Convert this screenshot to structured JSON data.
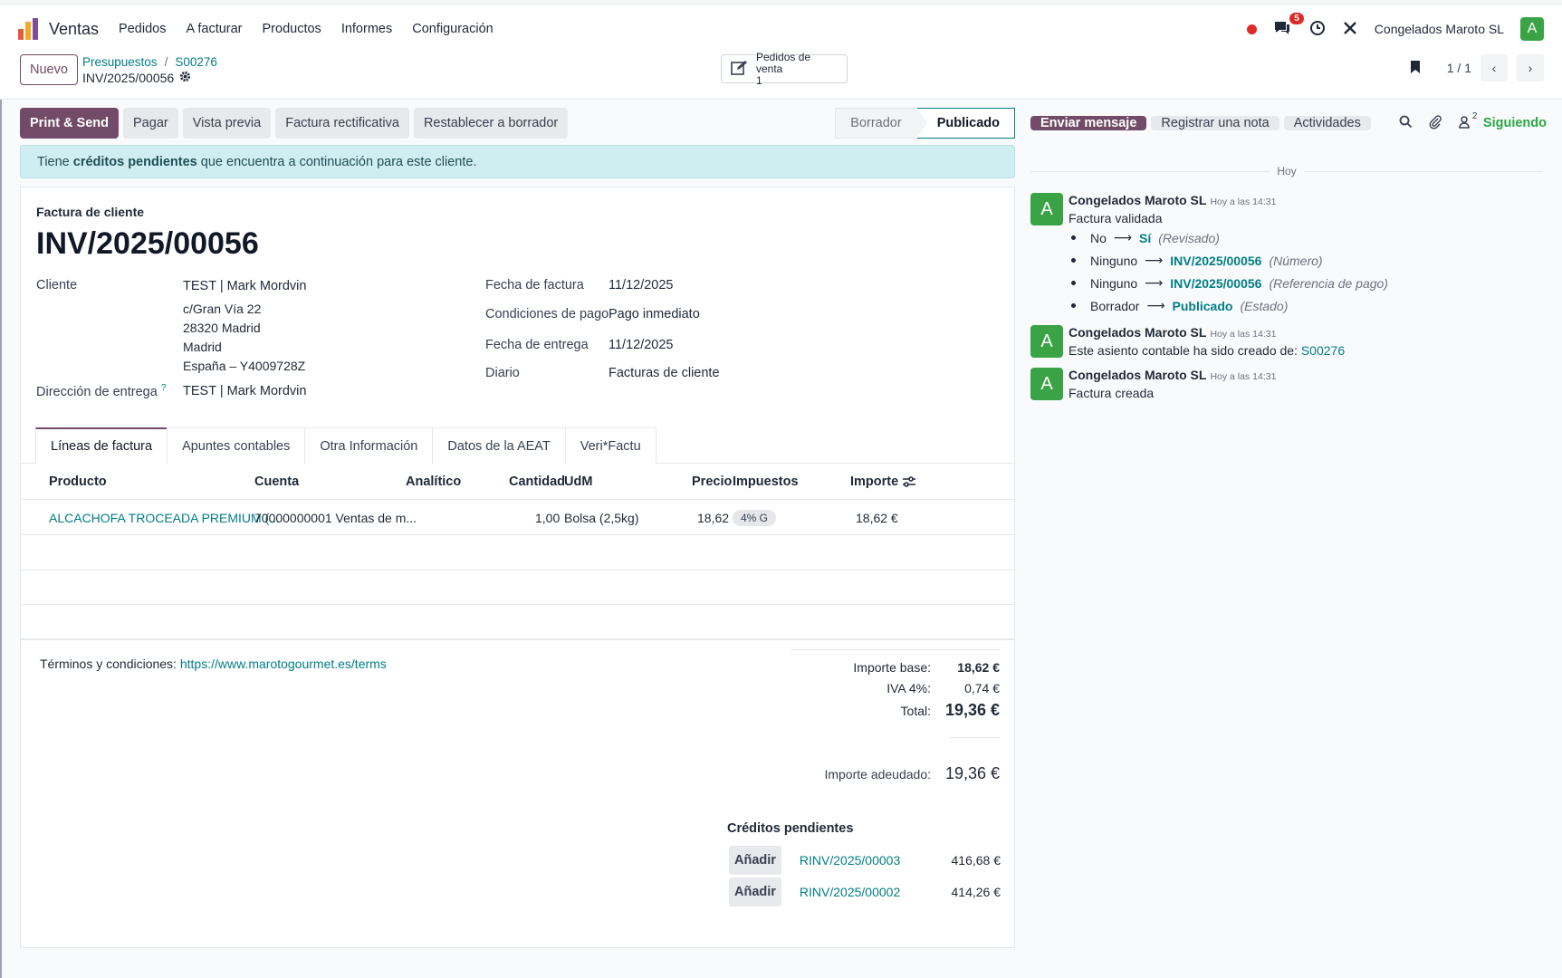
{
  "app": {
    "name": "Ventas",
    "menu": [
      "Pedidos",
      "A facturar",
      "Productos",
      "Informes",
      "Configuración"
    ],
    "messages_count": "5",
    "company": "Congelados Maroto SL",
    "avatar_letter": "A",
    "colors": {
      "brand": "#714b67",
      "link": "#017e84",
      "success": "#28a745",
      "avatar": "#3aa345"
    }
  },
  "control": {
    "new_label": "Nuevo",
    "breadcrumb": [
      "Presupuestos",
      "S00276"
    ],
    "current": "INV/2025/00056",
    "smart_button": {
      "label": "Pedidos de venta",
      "count": "1"
    },
    "pager": "1 / 1"
  },
  "actions": [
    "Print & Send",
    "Pagar",
    "Vista previa",
    "Factura rectificativa",
    "Restablecer a borrador"
  ],
  "status_steps": [
    {
      "label": "Borrador",
      "active": false
    },
    {
      "label": "Publicado",
      "active": true
    }
  ],
  "alert": {
    "prefix": "Tiene ",
    "bold": "créditos pendientes",
    "suffix": " que encuentra a continuación para este cliente."
  },
  "invoice": {
    "type": "Factura de cliente",
    "number": "INV/2025/00056",
    "customer_label": "Cliente",
    "customer": "TEST | Mark Mordvin",
    "address": [
      "c/Gran Vía 22",
      "28320 Madrid",
      "Madrid",
      "España – Y4009728Z"
    ],
    "delivery_label": "Dirección de entrega",
    "delivery_help": "?",
    "delivery": "TEST | Mark Mordvin",
    "date_label": "Fecha de factura",
    "date": "11/12/2025",
    "terms_label": "Condiciones de pago",
    "terms": "Pago inmediato",
    "delivery_date_label": "Fecha de entrega",
    "delivery_date": "11/12/2025",
    "journal_label": "Diario",
    "journal": "Facturas de cliente"
  },
  "tabs": [
    "Líneas de factura",
    "Apuntes contables",
    "Otra Información",
    "Datos de la AEAT",
    "Veri*Factu"
  ],
  "lines": {
    "headers": [
      "Producto",
      "Cuenta",
      "Analítico",
      "Cantidad",
      "UdM",
      "Precio",
      "Impuestos",
      "Importe"
    ],
    "rows": [
      {
        "product": "ALCACHOFA TROCEADA PREMIUM (...",
        "account": "70000000001 Ventas de m...",
        "analytic": "",
        "qty": "1,00",
        "uom": "Bolsa (2,5kg)",
        "price": "18,62",
        "tax": "4% G",
        "amount": "18,62 €"
      }
    ]
  },
  "terms_text": {
    "label": "Términos y condiciones: ",
    "url": "https://www.marotogourmet.es/terms"
  },
  "totals": {
    "base_label": "Importe base:",
    "base": "18,62 €",
    "tax_label": "IVA 4%:",
    "tax": "0,74 €",
    "total_label": "Total:",
    "total": "19,36 €",
    "due_label": "Importe adeudado:",
    "due": "19,36 €"
  },
  "credits": {
    "title": "Créditos pendientes",
    "items": [
      {
        "button": "Añadir",
        "ref": "RINV/2025/00003",
        "amount": "416,68 €"
      },
      {
        "button": "Añadir",
        "ref": "RINV/2025/00002",
        "amount": "414,26 €"
      }
    ]
  },
  "chatter": {
    "send_label": "Enviar mensaje",
    "note_label": "Registrar una nota",
    "activities_label": "Actividades",
    "followers_count": "2",
    "following_label": "Siguiendo",
    "day": "Hoy",
    "messages": [
      {
        "author": "Congelados Maroto SL",
        "time": "Hoy a las 14:31",
        "body": "Factura validada",
        "changes": [
          {
            "old": "No",
            "new": "Sí",
            "field": "(Revisado)"
          },
          {
            "old": "Ninguno",
            "new": "INV/2025/00056",
            "field": "(Número)"
          },
          {
            "old": "Ninguno",
            "new": "INV/2025/00056",
            "field": "(Referencia de pago)"
          },
          {
            "old": "Borrador",
            "new": "Publicado",
            "field": "(Estado)"
          }
        ]
      },
      {
        "author": "Congelados Maroto SL",
        "time": "Hoy a las 14:31",
        "body": "Este asiento contable ha sido creado de: ",
        "link": "S00276"
      },
      {
        "author": "Congelados Maroto SL",
        "time": "Hoy a las 14:31",
        "body": "Factura creada"
      }
    ]
  }
}
